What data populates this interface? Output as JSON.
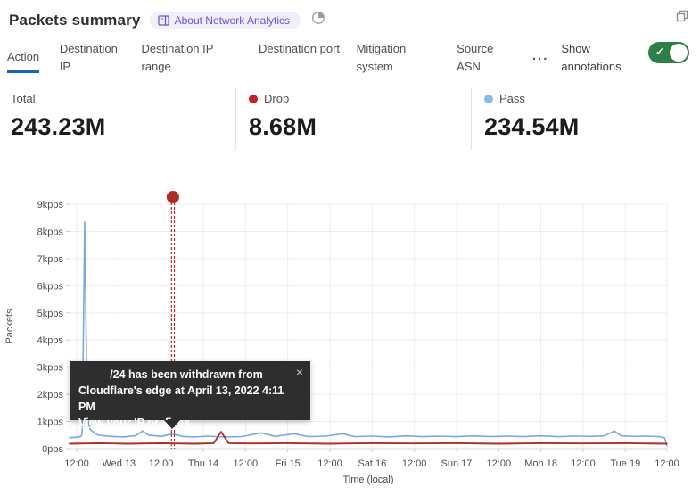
{
  "header": {
    "title": "Packets summary",
    "about_badge_label": "About Network Analytics"
  },
  "icons": {
    "badge_book": "book-icon",
    "time_range": "clock-icon",
    "popout": "popout-icon",
    "toggle_check": "✓",
    "more_ellipsis": "...",
    "tooltip_close": "×"
  },
  "tabs": {
    "items": [
      {
        "label": "Action",
        "active": true
      },
      {
        "label": "Destination IP",
        "active": false
      },
      {
        "label": "Destination IP range",
        "active": false
      },
      {
        "label": "Destination port",
        "active": false
      },
      {
        "label": "Mitigation system",
        "active": false
      },
      {
        "label": "Source ASN",
        "active": false
      }
    ],
    "annotations_label": "Show annotations",
    "annotations_toggle_on": true,
    "active_underline_color": "#1565c0",
    "toggle_color": "#2d7e47"
  },
  "stats": {
    "total": {
      "label": "Total",
      "value": "243.23M"
    },
    "drop": {
      "label": "Drop",
      "value": "8.68M",
      "dot_color": "#c02323"
    },
    "pass": {
      "label": "Pass",
      "value": "234.54M",
      "dot_color": "#8db8ea"
    }
  },
  "tooltip": {
    "line1": "/24 has been withdrawn from",
    "line2": "Cloudflare's edge at April 13, 2022 4:11 PM",
    "link_label": "View your IP prefixes"
  },
  "chart_data": {
    "type": "line",
    "xlabel": "Time (local)",
    "ylabel": "Packets",
    "unit": "kpps",
    "ylim": [
      0,
      9
    ],
    "grid": true,
    "legend_position": "top-stats-row",
    "x_ticks": [
      "12:00",
      "Wed 13",
      "12:00",
      "Thu 14",
      "12:00",
      "Fri 15",
      "12:00",
      "Sat 16",
      "12:00",
      "Sun 17",
      "12:00",
      "Mon 18",
      "12:00",
      "Tue 19",
      "12:00"
    ],
    "y_ticks": [
      "0pps",
      "1kpps",
      "2kpps",
      "3kpps",
      "4kpps",
      "5kpps",
      "6kpps",
      "7kpps",
      "8kpps",
      "9kpps"
    ],
    "annotation": {
      "x": 2.28,
      "color": "#b12a25",
      "meaning": "BGP prefix withdrawn - April 13, 2022 4:11 PM"
    },
    "series": [
      {
        "name": "Pass",
        "color": "#7ca7e3",
        "points": [
          [
            -0.17,
            0.4
          ],
          [
            0.0,
            0.42
          ],
          [
            0.1,
            0.45
          ],
          [
            0.13,
            0.55
          ],
          [
            0.19,
            8.35
          ],
          [
            0.25,
            1.15
          ],
          [
            0.32,
            0.7
          ],
          [
            0.5,
            0.5
          ],
          [
            0.8,
            0.45
          ],
          [
            1.1,
            0.43
          ],
          [
            1.4,
            0.48
          ],
          [
            1.56,
            0.65
          ],
          [
            1.7,
            0.5
          ],
          [
            2.0,
            0.45
          ],
          [
            2.28,
            0.55
          ],
          [
            2.5,
            0.45
          ],
          [
            2.8,
            0.43
          ],
          [
            3.1,
            0.46
          ],
          [
            3.5,
            0.43
          ],
          [
            3.9,
            0.44
          ],
          [
            4.37,
            0.58
          ],
          [
            4.7,
            0.45
          ],
          [
            5.15,
            0.55
          ],
          [
            5.5,
            0.44
          ],
          [
            5.9,
            0.46
          ],
          [
            6.3,
            0.55
          ],
          [
            6.6,
            0.44
          ],
          [
            7.0,
            0.46
          ],
          [
            7.4,
            0.43
          ],
          [
            7.8,
            0.47
          ],
          [
            8.2,
            0.44
          ],
          [
            8.6,
            0.46
          ],
          [
            9.0,
            0.44
          ],
          [
            9.4,
            0.47
          ],
          [
            9.8,
            0.44
          ],
          [
            10.2,
            0.46
          ],
          [
            10.6,
            0.44
          ],
          [
            11.0,
            0.47
          ],
          [
            11.4,
            0.44
          ],
          [
            11.8,
            0.46
          ],
          [
            12.2,
            0.45
          ],
          [
            12.5,
            0.47
          ],
          [
            12.74,
            0.65
          ],
          [
            12.9,
            0.47
          ],
          [
            13.2,
            0.45
          ],
          [
            13.5,
            0.46
          ],
          [
            13.8,
            0.44
          ],
          [
            13.93,
            0.4
          ],
          [
            13.98,
            0.12
          ]
        ]
      },
      {
        "name": "Drop",
        "color": "#b32d25",
        "points": [
          [
            -0.17,
            0.18
          ],
          [
            0.5,
            0.2
          ],
          [
            1.2,
            0.18
          ],
          [
            2.0,
            0.2
          ],
          [
            2.8,
            0.18
          ],
          [
            3.25,
            0.2
          ],
          [
            3.42,
            0.62
          ],
          [
            3.6,
            0.2
          ],
          [
            4.2,
            0.19
          ],
          [
            5.0,
            0.2
          ],
          [
            6.0,
            0.18
          ],
          [
            7.0,
            0.2
          ],
          [
            8.0,
            0.19
          ],
          [
            9.0,
            0.2
          ],
          [
            10.0,
            0.18
          ],
          [
            11.0,
            0.2
          ],
          [
            12.0,
            0.19
          ],
          [
            13.0,
            0.2
          ],
          [
            13.98,
            0.18
          ]
        ]
      }
    ]
  }
}
